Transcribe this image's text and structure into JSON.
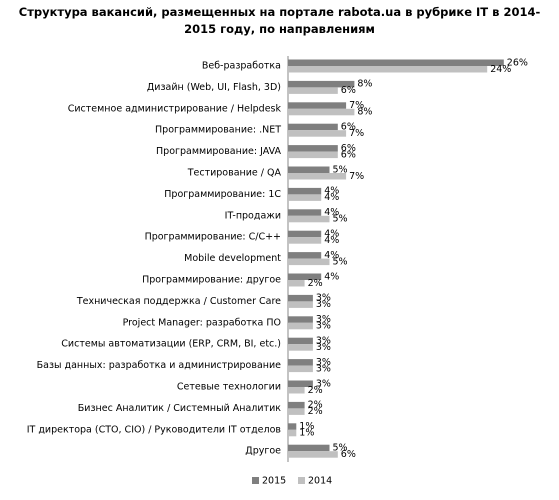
{
  "chart_data": {
    "type": "hbar",
    "title": "Структура вакансий, размещенных на портале rabota.ua в рубрике IT в 2014-2015 году, по направлениям",
    "categories": [
      "Веб-разработка",
      "Дизайн (Web, UI, Flash, 3D)",
      "Системное администрирование  / Helpdesk",
      "Программирование: .NET",
      "Программирование: JAVA",
      "Тестирование / QA",
      "Программирование: 1С",
      "IT-продажи",
      "Программирование: C/C++",
      "Mobile development",
      "Программирование: другое",
      "Техническая поддержка / Customer Care",
      "Project Manager: разработка ПО",
      "Системы автоматизации (ERP, CRM, BI, etc.)",
      "Базы данных: разработка и администрирование",
      "Сетевые технологии",
      "Бизнес Аналитик / Системный Аналитик",
      "IT директора (CTO, CIO) / Руководители IT отделов",
      "Другое"
    ],
    "series": [
      {
        "name": "2015",
        "color": "#7f7f7f",
        "values": [
          26,
          8,
          7,
          6,
          6,
          5,
          4,
          4,
          4,
          4,
          4,
          3,
          3,
          3,
          3,
          3,
          2,
          1,
          5
        ],
        "value_labels": [
          "26%",
          "8%",
          "7%",
          "6%",
          "6%",
          "5%",
          "4%",
          "4%",
          "4%",
          "4%",
          "4%",
          "3%",
          "3%",
          "3%",
          "3%",
          "3%",
          "2%",
          "1%",
          "5%"
        ]
      },
      {
        "name": "2014",
        "color": "#c0c0c0",
        "values": [
          24,
          6,
          8,
          7,
          6,
          7,
          4,
          5,
          4,
          5,
          2,
          3,
          3,
          3,
          3,
          2,
          2,
          1,
          6
        ],
        "value_labels": [
          "24%",
          "6%",
          "8%",
          "7%",
          "6%",
          "7%",
          "4%",
          "5%",
          "4%",
          "5%",
          "2%",
          "3%",
          "3%",
          "3%",
          "3%",
          "2%",
          "2%",
          "1%",
          "6%"
        ]
      }
    ]
  }
}
